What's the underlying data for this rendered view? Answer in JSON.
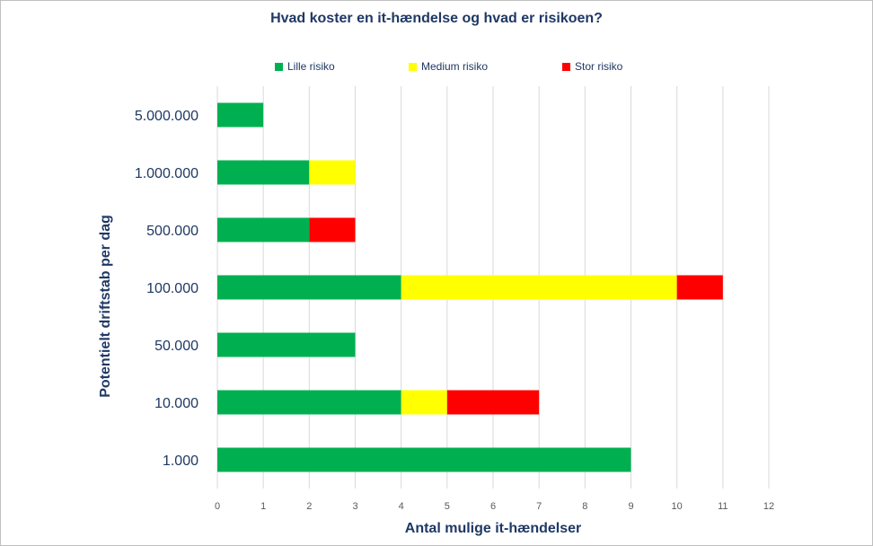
{
  "chart_data": {
    "type": "bar",
    "orientation": "horizontal",
    "stacked": true,
    "title": "Hvad koster en it-hændelse og hvad er risikoen?",
    "xlabel": "Antal mulige it-hændelser",
    "ylabel": "Potentielt driftstab per dag",
    "xlim": [
      0,
      12
    ],
    "x_ticks": [
      "0",
      "1",
      "2",
      "3",
      "4",
      "5",
      "6",
      "7",
      "8",
      "9",
      "10",
      "11",
      "12"
    ],
    "categories": [
      "5.000.000",
      "1.000.000",
      "500.000",
      "100.000",
      "50.000",
      "10.000",
      "1.000"
    ],
    "series": [
      {
        "name": "Lille risiko",
        "color": "#00b050",
        "values": [
          1,
          2,
          2,
          4,
          3,
          4,
          9
        ]
      },
      {
        "name": "Medium risiko",
        "color": "#ffff00",
        "values": [
          0,
          1,
          0,
          6,
          0,
          1,
          0
        ]
      },
      {
        "name": "Stor risiko",
        "color": "#ff0000",
        "values": [
          0,
          0,
          1,
          1,
          0,
          2,
          0
        ]
      }
    ],
    "grid": true,
    "legend_position": "top"
  }
}
